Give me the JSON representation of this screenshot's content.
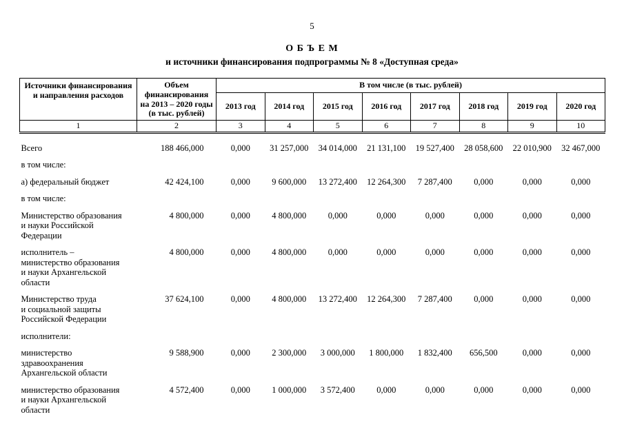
{
  "page": {
    "number": "5",
    "title_line1": "О Б Ъ Е М",
    "title_line2": "и источники финансирования подпрограммы № 8 «Доступная среда»"
  },
  "table": {
    "header": {
      "col1": "Источники финансирования\nи направления расходов",
      "col2": "Объем\nфинансирования\nна 2013 – 2020 годы\n(в тыс. рублей)",
      "group": "В том числе (в тыс. рублей)",
      "years": [
        "2013 год",
        "2014 год",
        "2015 год",
        "2016 год",
        "2017 год",
        "2018 год",
        "2019 год",
        "2020 год"
      ],
      "numbers": [
        "1",
        "2",
        "3",
        "4",
        "5",
        "6",
        "7",
        "8",
        "9",
        "10"
      ]
    },
    "rows": [
      {
        "label": "Всего",
        "values": [
          "188 466,000",
          "0,000",
          "31 257,000",
          "34 014,000",
          "21 131,100",
          "19 527,400",
          "28 058,600",
          "22 010,900",
          "32 467,000"
        ]
      },
      {
        "label": "в том числе:",
        "values": []
      },
      {
        "label": "а) федеральный бюджет",
        "values": [
          "42 424,100",
          "0,000",
          "9 600,000",
          "13 272,400",
          "12 264,300",
          "7 287,400",
          "0,000",
          "0,000",
          "0,000"
        ]
      },
      {
        "label": "в том числе:",
        "values": []
      },
      {
        "label": "Министерство образования\nи науки Российской\nФедерации",
        "values": [
          "4 800,000",
          "0,000",
          "4 800,000",
          "0,000",
          "0,000",
          "0,000",
          "0,000",
          "0,000",
          "0,000"
        ]
      },
      {
        "label": "исполнитель –\nминистерство образования\nи науки Архангельской\nобласти",
        "values": [
          "4 800,000",
          "0,000",
          "4 800,000",
          "0,000",
          "0,000",
          "0,000",
          "0,000",
          "0,000",
          "0,000"
        ]
      },
      {
        "label": "Министерство труда\nи социальной защиты\nРоссийской Федерации",
        "values": [
          "37 624,100",
          "0,000",
          "4 800,000",
          "13 272,400",
          "12 264,300",
          "7 287,400",
          "0,000",
          "0,000",
          "0,000"
        ]
      },
      {
        "label": "исполнители:",
        "values": []
      },
      {
        "label": "министерство\nздравоохранения\nАрхангельской области",
        "values": [
          "9 588,900",
          "0,000",
          "2 300,000",
          "3 000,000",
          "1 800,000",
          "1 832,400",
          "656,500",
          "0,000",
          "0,000"
        ]
      },
      {
        "label": "министерство образования\nи науки Архангельской\nобласти",
        "values": [
          "4 572,400",
          "0,000",
          "1 000,000",
          "3 572,400",
          "0,000",
          "0,000",
          "0,000",
          "0,000",
          "0,000"
        ]
      }
    ]
  }
}
